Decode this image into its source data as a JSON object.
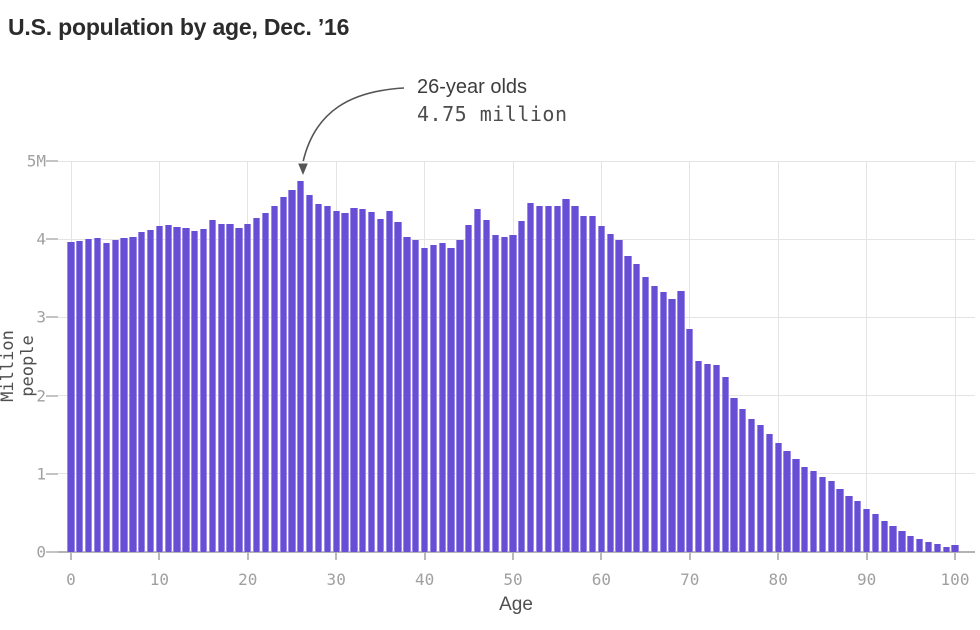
{
  "title": "U.S. population by age, Dec. ’16",
  "annotation": {
    "line1": "26-year olds",
    "line2": "4.75 million",
    "target_age": 26
  },
  "colors": {
    "bar_fill": "#684ed4",
    "bar_edge": "#9b8ce6",
    "gridline": "#e4e4e4",
    "axis_line": "#b3b3b3",
    "tick_label": "#a0a0a0",
    "title_text": "#2b2b2b",
    "annotation_text": "#3d3d3d",
    "arrow": "#555555"
  },
  "chart_data": {
    "type": "bar",
    "title": "U.S. population by age, Dec. ’16",
    "xlabel": "Age",
    "ylabel": "Million people",
    "ylim": [
      0,
      5
    ],
    "grid": true,
    "yticks": [
      0,
      1,
      2,
      3,
      4,
      5
    ],
    "ytick_labels": [
      "0",
      "1",
      "2",
      "3",
      "4",
      "5M"
    ],
    "xticks": [
      0,
      10,
      20,
      30,
      40,
      50,
      60,
      70,
      80,
      90,
      100
    ],
    "xtick_labels": [
      "0",
      "10",
      "20",
      "30",
      "40",
      "50",
      "60",
      "70",
      "80",
      "90",
      "100"
    ],
    "x_range": [
      0,
      100
    ],
    "values": [
      3.96,
      3.98,
      4.0,
      4.01,
      3.95,
      3.99,
      4.02,
      4.03,
      4.09,
      4.12,
      4.17,
      4.18,
      4.16,
      4.14,
      4.11,
      4.13,
      4.25,
      4.19,
      4.19,
      4.14,
      4.19,
      4.27,
      4.34,
      4.43,
      4.54,
      4.63,
      4.75,
      4.57,
      4.45,
      4.43,
      4.36,
      4.34,
      4.4,
      4.38,
      4.35,
      4.26,
      4.36,
      4.22,
      4.03,
      3.99,
      3.89,
      3.92,
      3.95,
      3.89,
      3.99,
      4.18,
      4.38,
      4.25,
      4.06,
      4.03,
      4.06,
      4.23,
      4.46,
      4.43,
      4.42,
      4.43,
      4.52,
      4.43,
      4.3,
      4.3,
      4.17,
      4.07,
      3.99,
      3.78,
      3.68,
      3.52,
      3.4,
      3.32,
      3.23,
      3.34,
      2.85,
      2.44,
      2.41,
      2.39,
      2.24,
      1.97,
      1.83,
      1.7,
      1.62,
      1.51,
      1.39,
      1.29,
      1.19,
      1.09,
      1.04,
      0.96,
      0.91,
      0.8,
      0.72,
      0.65,
      0.55,
      0.48,
      0.4,
      0.33,
      0.27,
      0.21,
      0.17,
      0.13,
      0.1,
      0.06,
      0.09
    ]
  }
}
